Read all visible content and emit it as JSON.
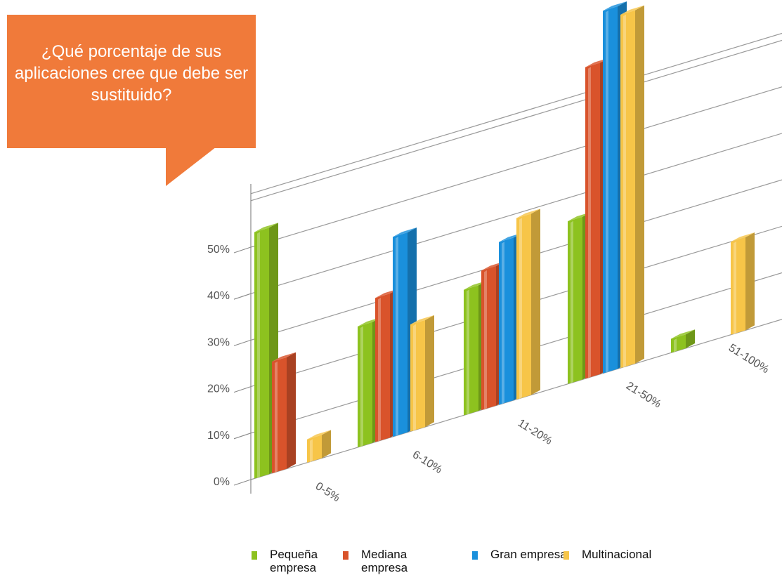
{
  "question": "¿Qué porcentaje de sus aplicaciones cree que debe ser sustituido?",
  "chart_data": {
    "type": "bar",
    "categories": [
      "0-5%",
      "6-10%",
      "11-20%",
      "21-50%",
      "51-100%"
    ],
    "series": [
      {
        "name": "Pequeña empresa",
        "color": "#8dc21f",
        "values": [
          53,
          26,
          27,
          35,
          3
        ]
      },
      {
        "name": "Mediana empresa",
        "color": "#d9532b",
        "values": [
          24,
          31,
          30,
          67,
          null
        ]
      },
      {
        "name": "Gran empresa",
        "color": "#1a90dc",
        "values": [
          null,
          43,
          35,
          78,
          null
        ]
      },
      {
        "name": "Multinacional",
        "color": "#f7c548",
        "values": [
          5,
          23,
          39,
          76,
          20
        ]
      }
    ],
    "yticks": [
      "0%",
      "10%",
      "20%",
      "30%",
      "40%",
      "50%"
    ],
    "ylim": [
      0,
      100
    ],
    "grid": true,
    "legend_position": "bottom"
  }
}
